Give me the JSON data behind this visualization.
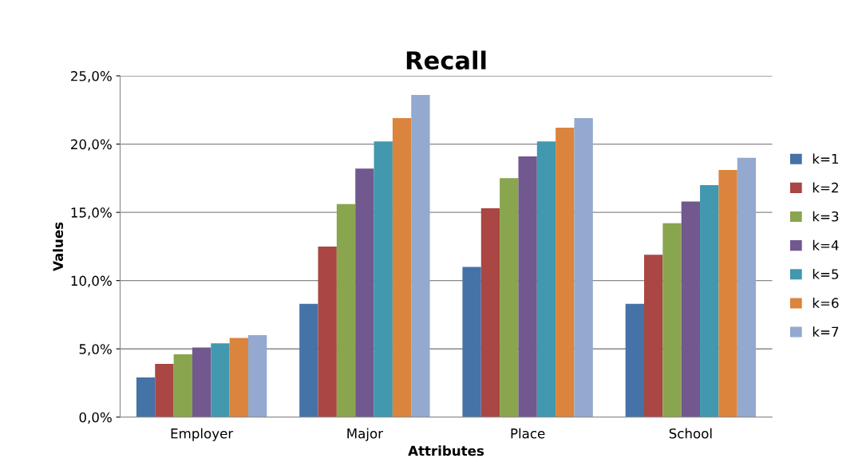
{
  "chart_data": {
    "type": "bar",
    "title": "Recall",
    "xlabel": "Attributes",
    "ylabel": "Values",
    "categories": [
      "Employer",
      "Major",
      "Place",
      "School"
    ],
    "series": [
      {
        "name": "k=1",
        "color": "#4572a7",
        "values": [
          2.9,
          8.3,
          11.0,
          8.3
        ]
      },
      {
        "name": "k=2",
        "color": "#aa4643",
        "values": [
          3.9,
          12.5,
          15.3,
          11.9
        ]
      },
      {
        "name": "k=3",
        "color": "#89a54e",
        "values": [
          4.6,
          15.6,
          17.5,
          14.2
        ]
      },
      {
        "name": "k=4",
        "color": "#71588f",
        "values": [
          5.1,
          18.2,
          19.1,
          15.8
        ]
      },
      {
        "name": "k=5",
        "color": "#4198af",
        "values": [
          5.4,
          20.2,
          20.2,
          17.0
        ]
      },
      {
        "name": "k=6",
        "color": "#db843d",
        "values": [
          5.8,
          21.9,
          21.2,
          18.1
        ]
      },
      {
        "name": "k=7",
        "color": "#93a9cf",
        "values": [
          6.0,
          23.6,
          21.9,
          19.0
        ]
      }
    ],
    "ylim": [
      0,
      25
    ],
    "yticks": [
      {
        "value": 0,
        "label": "0,0%"
      },
      {
        "value": 5,
        "label": "5,0%"
      },
      {
        "value": 10,
        "label": "10,0%"
      },
      {
        "value": 15,
        "label": "15,0%"
      },
      {
        "value": 20,
        "label": "20,0%"
      },
      {
        "value": 25,
        "label": "25,0%"
      }
    ],
    "grid": "y",
    "legend": "right"
  }
}
